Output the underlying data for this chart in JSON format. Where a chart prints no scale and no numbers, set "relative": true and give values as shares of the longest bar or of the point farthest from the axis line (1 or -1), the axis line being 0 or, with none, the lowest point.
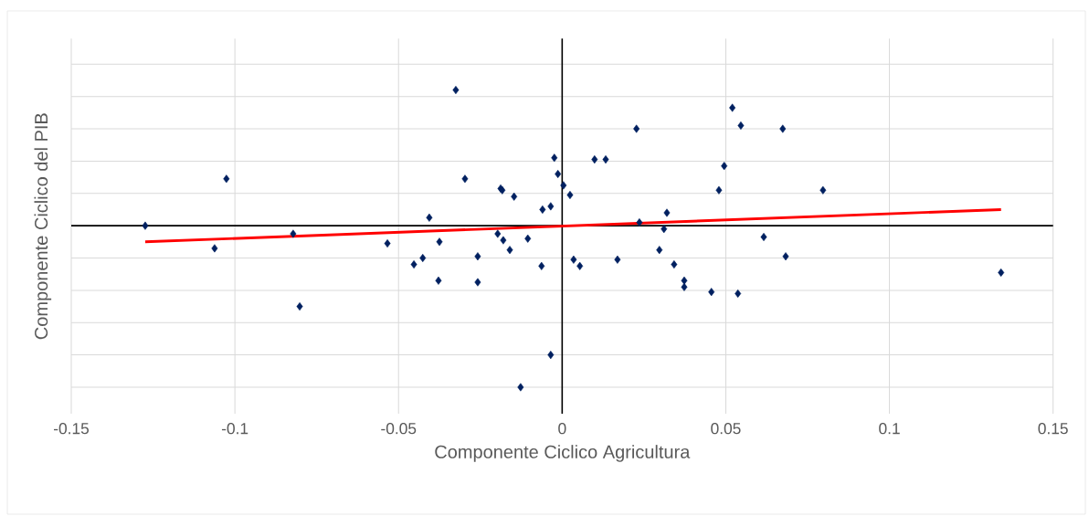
{
  "chart_data": {
    "type": "scatter",
    "xlabel": "Componente Ciclico Agricultura",
    "ylabel": "Componente Ciclico del PIB",
    "relative": true,
    "xlim": [
      -0.15,
      0.15
    ],
    "xticks": [
      -0.15,
      -0.1,
      -0.05,
      0,
      0.05,
      0.1,
      0.15
    ],
    "grid": true,
    "tick_labels": "x",
    "series": [
      {
        "type": "scatter",
        "color": "#002060",
        "marker": "diamond",
        "x": [
          -0.1274,
          -0.1062,
          -0.1026,
          -0.0822,
          -0.0802,
          -0.0534,
          -0.0453,
          -0.0426,
          -0.0406,
          -0.0375,
          -0.0378,
          -0.0325,
          -0.0297,
          -0.0258,
          -0.0258,
          -0.0197,
          -0.0188,
          -0.0183,
          -0.018,
          -0.016,
          -0.0147,
          -0.0127,
          -0.0105,
          -0.0063,
          -0.006,
          -0.0035,
          -0.0035,
          -0.0024,
          -0.0013,
          0.0004,
          0.0024,
          0.0035,
          0.0054,
          0.0099,
          0.0133,
          0.0169,
          0.0227,
          0.0236,
          0.0297,
          0.0311,
          0.032,
          0.0342,
          0.0373,
          0.0373,
          0.0456,
          0.0479,
          0.0495,
          0.052,
          0.0537,
          0.0546,
          0.0616,
          0.0674,
          0.0683,
          0.0797,
          0.1341
        ],
        "values": [
          0.0,
          -0.14,
          0.29,
          -0.05,
          -0.5,
          -0.11,
          -0.24,
          -0.2,
          0.05,
          -0.1,
          -0.34,
          0.84,
          0.29,
          -0.19,
          -0.35,
          -0.05,
          0.23,
          0.22,
          -0.09,
          -0.15,
          0.18,
          -1.0,
          -0.08,
          -0.25,
          0.1,
          0.12,
          -0.8,
          0.42,
          0.32,
          0.25,
          0.19,
          -0.21,
          -0.25,
          0.41,
          0.41,
          -0.21,
          0.6,
          0.02,
          -0.15,
          -0.02,
          0.08,
          -0.24,
          -0.34,
          -0.38,
          -0.41,
          0.22,
          0.37,
          0.73,
          -0.42,
          0.62,
          -0.07,
          0.6,
          -0.19,
          0.22,
          -0.29
        ]
      },
      {
        "type": "line",
        "color": "#ff0000",
        "marker": "none",
        "line_style": "solid",
        "x": [
          -0.1274,
          0.1341
        ],
        "values": [
          -0.1,
          0.1
        ]
      }
    ]
  }
}
